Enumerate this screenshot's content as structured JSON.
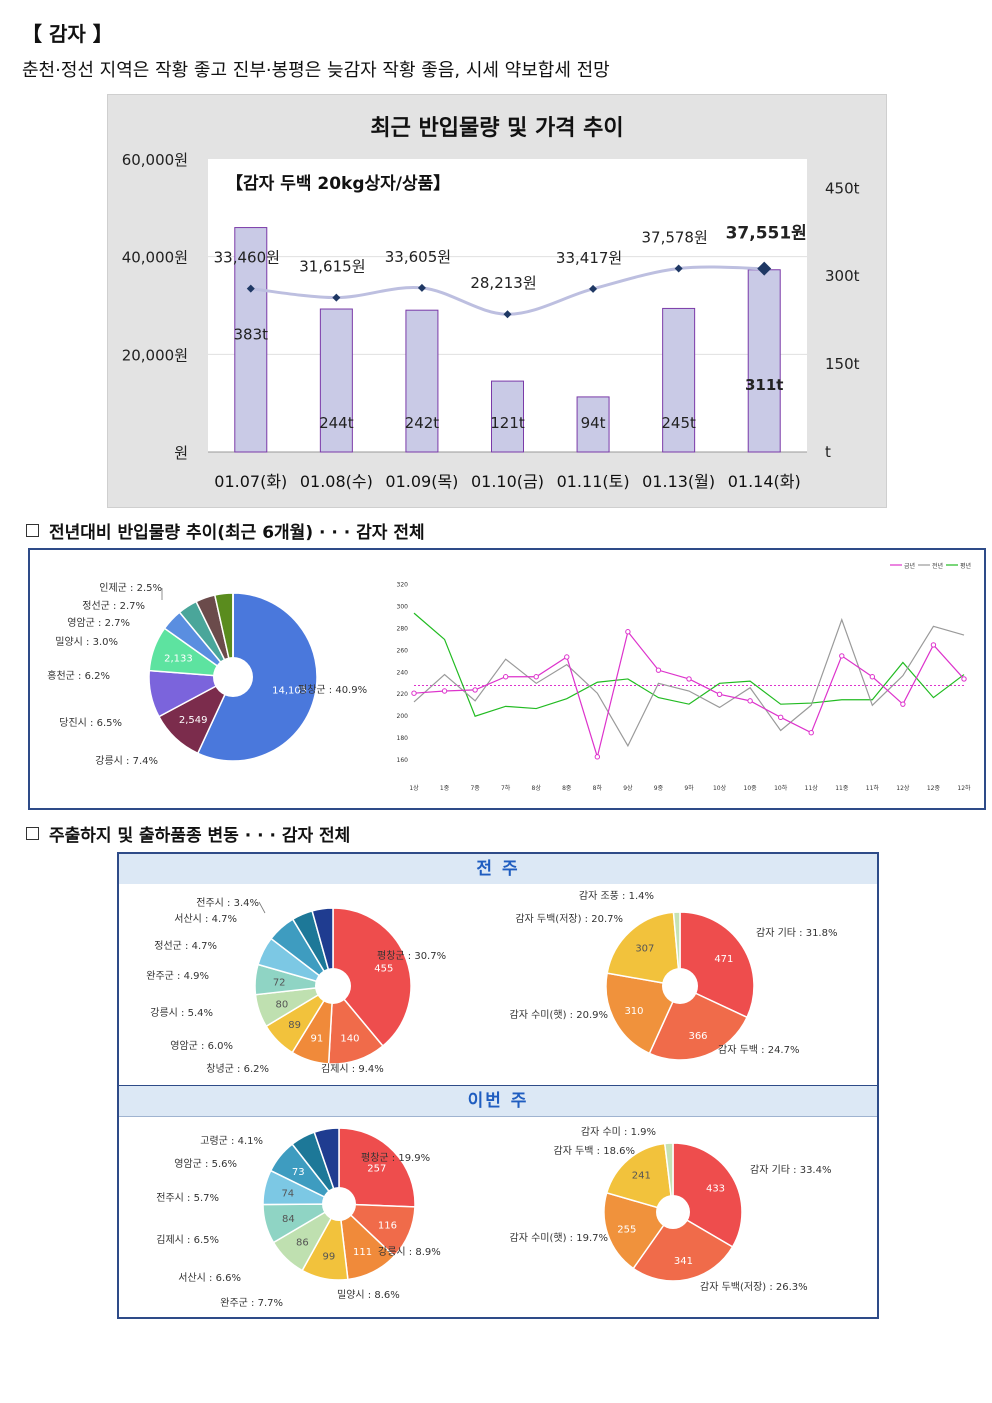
{
  "section": {
    "title": "【 감자 】",
    "description": "춘천·정선 지역은 작황 좋고 진부·봉평은 늦감자 작황 좋음, 시세 약보합세 전망"
  },
  "headings": {
    "six_month": "전년대비 반입물량 추이(최근 6개월) · · · 감자 전체",
    "origin_change": "주출하지 및 출하품종 변동 · · · 감자 전체"
  },
  "chart_data": [
    {
      "type": "bar",
      "title": "최근 반입물량 및 가격 추이",
      "subtitle": "【감자 두백 20kg상자/상품】",
      "categories": [
        "01.07(화)",
        "01.08(수)",
        "01.09(목)",
        "01.10(금)",
        "01.11(토)",
        "01.13(월)",
        "01.14(화)"
      ],
      "series": [
        {
          "values": [
            383,
            244,
            242,
            121,
            94,
            245,
            311
          ],
          "labels": [
            "383t",
            "244t",
            "242t",
            "121t",
            "94t",
            "245t",
            "311t"
          ],
          "color": "#c9cae6"
        },
        {
          "type": "line",
          "values": [
            33460,
            31615,
            33605,
            28213,
            33417,
            37578,
            37551
          ],
          "labels": [
            "33,460원",
            "31,615원",
            "33,605원",
            "28,213원",
            "33,417원",
            "37,578원",
            "37,551원"
          ],
          "color": "#1f3864"
        }
      ],
      "y_left": {
        "ticks": [
          "60,000원",
          "40,000원",
          "20,000원",
          "원"
        ],
        "ylim": [
          0,
          60000
        ]
      },
      "y_right": {
        "ticks": [
          "450t",
          "300t",
          "150t",
          "t"
        ],
        "ylim": [
          0,
          500
        ]
      }
    },
    {
      "type": "pie",
      "labels": [
        "평창군 : 40.9%",
        "강릉시 : 7.4%",
        "당진시 : 6.5%",
        "홍천군 : 6.2%",
        "밀양시 : 3.0%",
        "영암군 : 2.7%",
        "정선군 : 2.7%",
        "인제군 : 2.5%"
      ],
      "values": [
        40.9,
        7.4,
        6.5,
        6.2,
        3.0,
        2.7,
        2.7,
        2.5
      ],
      "inner_labels": [
        "14,105",
        "2,549",
        "",
        "2,133",
        "",
        "",
        "",
        ""
      ],
      "colors": [
        "#4a78dc",
        "#7b2c4c",
        "#7b64dc",
        "#5de3a0",
        "#5a8ee0",
        "#4aa69a",
        "#6b4b4b",
        "#5a8c1e"
      ],
      "extra_colors": [
        "#7aa840",
        "#e0407a"
      ]
    },
    {
      "type": "line",
      "legend": [
        "금년",
        "전년",
        "평년"
      ],
      "categories": [
        "1상",
        "1중",
        "7중",
        "7하",
        "8상",
        "8중",
        "8하",
        "9상",
        "9중",
        "9하",
        "10상",
        "10중",
        "10하",
        "11상",
        "11중",
        "11하",
        "12상",
        "12중",
        "12하"
      ],
      "yticks": [
        320,
        300,
        280,
        260,
        240,
        220,
        200,
        180,
        160
      ],
      "ylim": [
        150,
        325
      ],
      "reference": 227,
      "series": [
        {
          "values": [
            220,
            222,
            223,
            235,
            235,
            253,
            162,
            276,
            241,
            233,
            219,
            213,
            198,
            184,
            254,
            235,
            210,
            264,
            233
          ],
          "color": "#dd33cc",
          "marker": true
        },
        {
          "values": [
            212,
            237,
            213,
            251,
            229,
            246,
            220,
            172,
            229,
            222,
            207,
            225,
            186,
            209,
            287,
            209,
            236,
            281,
            273
          ],
          "color": "#9a9a9a"
        },
        {
          "values": [
            293,
            269,
            199,
            208,
            206,
            215,
            230,
            233,
            216,
            210,
            229,
            231,
            210,
            211,
            214,
            214,
            248,
            216,
            237
          ],
          "color": "#22bb22"
        }
      ]
    },
    {
      "type": "pie",
      "period": "전 주",
      "labels": [
        "평창군 : 30.7%",
        "김제시 : 9.4%",
        "창녕군 : 6.2%",
        "영암군 : 6.0%",
        "강릉시 : 5.4%",
        "완주군 : 4.9%",
        "정선군 : 4.7%",
        "서산시 : 4.7%",
        "전주시 : 3.4%"
      ],
      "values": [
        30.7,
        9.4,
        6.2,
        6.0,
        5.4,
        4.9,
        4.7,
        4.7,
        3.4
      ],
      "inner_labels": [
        "455",
        "140",
        "91",
        "89",
        "80",
        "72",
        "",
        "",
        ""
      ],
      "colors": [
        "#ee4d4d",
        "#f06b4a",
        "#f08a3a",
        "#f2c23c",
        "#bfe0b0",
        "#8fd4c4",
        "#7cc8e4",
        "#3e9cc0",
        "#1d7898"
      ],
      "extra_colors": [
        "#1f3c90"
      ]
    },
    {
      "type": "pie",
      "period": "전 주",
      "labels": [
        "감자 기타 : 31.8%",
        "감자 두백 : 24.7%",
        "감자 수미(햇) : 20.9%",
        "감자 두백(저장) : 20.7%",
        "감자 조풍 : 1.4%"
      ],
      "values": [
        31.8,
        24.7,
        20.9,
        20.7,
        1.4
      ],
      "inner_labels": [
        "471",
        "366",
        "310",
        "307",
        ""
      ],
      "colors": [
        "#ee4d4d",
        "#f06b4a",
        "#f0923c",
        "#f2c23c",
        "#c6e2b4"
      ]
    },
    {
      "type": "pie",
      "period": "이번 주",
      "labels": [
        "평창군 : 19.9%",
        "강릉시 : 8.9%",
        "밀양시 : 8.6%",
        "완주군 : 7.7%",
        "서산시 : 6.6%",
        "김제시 : 6.5%",
        "전주시 : 5.7%",
        "영암군 : 5.6%",
        "고령군 : 4.1%"
      ],
      "values": [
        19.9,
        8.9,
        8.6,
        7.7,
        6.6,
        6.5,
        5.7,
        5.6,
        4.1
      ],
      "inner_labels": [
        "257",
        "116",
        "111",
        "99",
        "86",
        "84",
        "74",
        "73",
        ""
      ],
      "colors": [
        "#ee4d4d",
        "#f06b4a",
        "#f08a3a",
        "#f2c23c",
        "#bfe0b0",
        "#8fd4c4",
        "#7cc8e4",
        "#3e9cc0",
        "#1d7898"
      ],
      "extra_colors": [
        "#1f3c90"
      ]
    },
    {
      "type": "pie",
      "period": "이번 주",
      "labels": [
        "감자 기타 : 33.4%",
        "감자 두백(저장) : 26.3%",
        "감자 수미(햇) : 19.7%",
        "감자 두백 : 18.6%",
        "감자 수미 : 1.9%"
      ],
      "values": [
        33.4,
        26.3,
        19.7,
        18.6,
        1.9
      ],
      "inner_labels": [
        "433",
        "341",
        "255",
        "241",
        ""
      ],
      "colors": [
        "#ee4d4d",
        "#f06b4a",
        "#f0923c",
        "#f2c23c",
        "#c6e2b4"
      ]
    }
  ]
}
